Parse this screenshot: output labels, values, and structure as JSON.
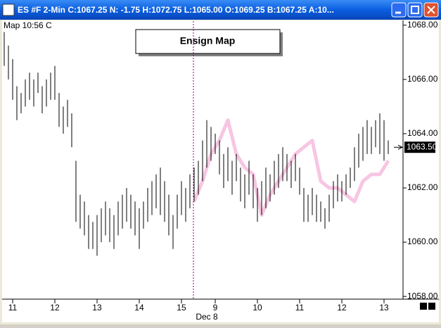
{
  "window": {
    "title": "ES #F  2-Min C:1067.25 N: -1.75 H:1072.75 L:1065.00 O:1069.25 B:1067.25 A:10..."
  },
  "chart_data": {
    "type": "range_bar",
    "corner_label": "Map  10:56 C",
    "legend_box": "Ensign Map",
    "x_sublabel": "Dec 8",
    "color": "#000000",
    "xlim": [
      -0.33,
      94.5
    ],
    "ylim": [
      1057.9,
      1068.15
    ],
    "yticks": [
      {
        "value": 1068,
        "label": "1068.00"
      },
      {
        "value": 1066,
        "label": "1066.00"
      },
      {
        "value": 1064,
        "label": "1064.00"
      },
      {
        "value": 1062,
        "label": "1062.00"
      },
      {
        "value": 1060,
        "label": "1060.00"
      },
      {
        "value": 1058,
        "label": "1058.00"
      }
    ],
    "xticks": [
      {
        "value": 2,
        "label": "11"
      },
      {
        "value": 12,
        "label": "12"
      },
      {
        "value": 22,
        "label": "13"
      },
      {
        "value": 32,
        "label": "14"
      },
      {
        "value": 42,
        "label": "15"
      },
      {
        "value": 50,
        "label": "9"
      },
      {
        "value": 60,
        "label": "10"
      },
      {
        "value": 70,
        "label": "11"
      },
      {
        "value": 80,
        "label": "12"
      },
      {
        "value": 90,
        "label": "13"
      }
    ],
    "session_break": 44.83,
    "last_price": {
      "value": 1063.5,
      "label": "1063.50"
    },
    "high": [
      1067.75,
      1067.25,
      1066.75,
      1065.75,
      1065.5,
      1066,
      1066.25,
      1066,
      1066.25,
      1065.75,
      1066,
      1066.25,
      1066.5,
      1065.5,
      1065,
      1065.25,
      1064.75,
      1063,
      1061.75,
      1061.5,
      1061,
      1060.75,
      1061,
      1061.25,
      1061.5,
      1061.25,
      1061,
      1061.5,
      1061.75,
      1062,
      1061.75,
      1061.5,
      1061.25,
      1061.5,
      1062,
      1062.25,
      1062.5,
      1062.75,
      1062.25,
      1061.75,
      1061,
      1061.75,
      1062.25,
      1062,
      1062.5,
      1062.75,
      1063,
      1063.75,
      1064.5,
      1064.25,
      1064,
      1063.75,
      1063.25,
      1063.5,
      1063,
      1063.25,
      1062.75,
      1062.5,
      1063,
      1062.5,
      1062,
      1062.25,
      1062.75,
      1062.5,
      1063,
      1063.25,
      1063.5,
      1063.25,
      1063,
      1063.25,
      1062.75,
      1062,
      1061.75,
      1062,
      1061.75,
      1061.5,
      1061.25,
      1061.75,
      1062.25,
      1062.5,
      1062.25,
      1062.5,
      1062.75,
      1063.5,
      1064,
      1064.25,
      1064.5,
      1064.25,
      1064.5,
      1064.75,
      1064.5,
      1063.75
    ],
    "low": [
      1066.5,
      1066,
      1065.25,
      1064.5,
      1064.75,
      1065,
      1065.25,
      1065,
      1065.5,
      1064.75,
      1065,
      1065.25,
      1065.25,
      1064.25,
      1064,
      1064.25,
      1063.5,
      1060.75,
      1060.5,
      1060.25,
      1059.75,
      1059.75,
      1059.5,
      1060,
      1060.25,
      1060,
      1059.75,
      1060.25,
      1060.5,
      1060.75,
      1060.5,
      1060.25,
      1059.75,
      1060.5,
      1060.75,
      1061,
      1061.25,
      1061,
      1060.75,
      1060.25,
      1059.75,
      1060.5,
      1061,
      1060.75,
      1061.25,
      1061.5,
      1061.75,
      1062.25,
      1062.75,
      1063,
      1063.25,
      1062.5,
      1062,
      1062.25,
      1061.75,
      1062.25,
      1061.5,
      1061.25,
      1061.75,
      1061.25,
      1060.75,
      1061,
      1061.25,
      1061.5,
      1061.75,
      1062,
      1062.25,
      1062.25,
      1062,
      1062.25,
      1061.75,
      1060.75,
      1060.75,
      1061,
      1060.75,
      1060.75,
      1060.5,
      1060.75,
      1061.25,
      1061.5,
      1061.5,
      1061.75,
      1062,
      1062.25,
      1062.75,
      1063,
      1063.25,
      1063.25,
      1063.5,
      1063.25,
      1063,
      1063.25
    ],
    "map": {
      "color": "#f7c6e2",
      "x": [
        45,
        47,
        49,
        51,
        53,
        55,
        57,
        59,
        61,
        63,
        65,
        67,
        69,
        71,
        73,
        75,
        77,
        79,
        81,
        83,
        85,
        87,
        89,
        91
      ],
      "values": [
        1061.5,
        1062.25,
        1063.25,
        1063.75,
        1064.5,
        1063.25,
        1062.75,
        1062.5,
        1061,
        1061.75,
        1062.25,
        1062.75,
        1063.25,
        1063.5,
        1063.75,
        1062.25,
        1062,
        1062,
        1061.75,
        1061.5,
        1062.25,
        1062.5,
        1062.5,
        1063
      ]
    }
  }
}
